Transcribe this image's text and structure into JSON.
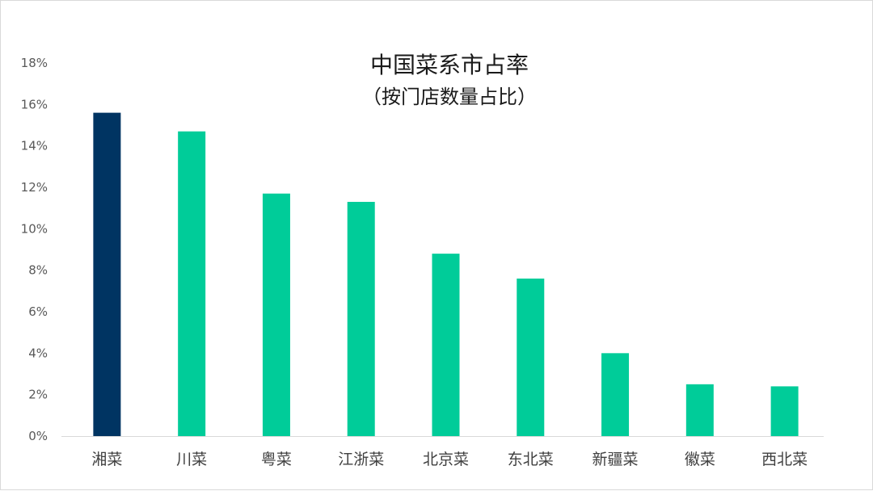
{
  "chart_data": {
    "type": "bar",
    "title": "中国菜系市占率",
    "subtitle": "（按门店数量占比）",
    "xlabel": "",
    "ylabel": "",
    "categories": [
      "湘菜",
      "川菜",
      "粤菜",
      "江浙菜",
      "北京菜",
      "东北菜",
      "新疆菜",
      "徽菜",
      "西北菜"
    ],
    "values": [
      15.6,
      14.7,
      11.7,
      11.3,
      8.8,
      7.6,
      4.0,
      2.5,
      2.4
    ],
    "ylim": [
      0,
      18
    ],
    "yticks": [
      "0%",
      "2%",
      "4%",
      "6%",
      "8%",
      "10%",
      "12%",
      "14%",
      "16%",
      "18%"
    ],
    "grid": false,
    "legend": "none",
    "colors": {
      "highlight": "#003462",
      "default": "#00cc99",
      "axis": "#d9d9d9"
    },
    "highlight_index": 0
  }
}
